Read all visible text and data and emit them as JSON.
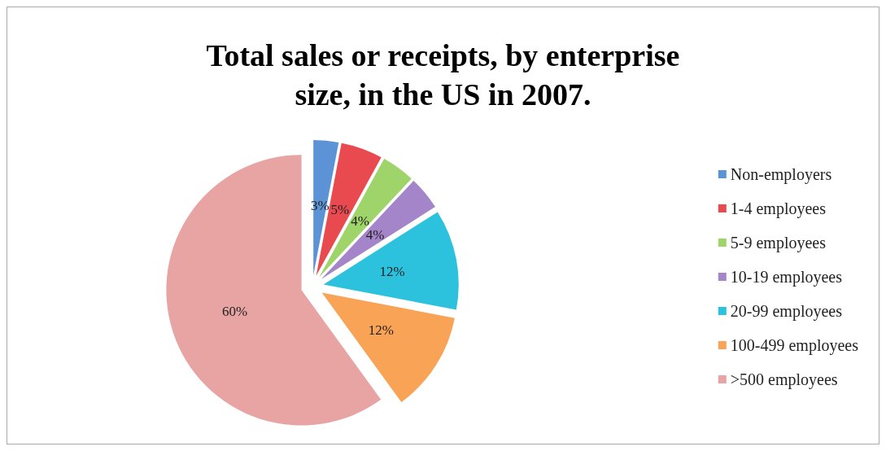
{
  "chart_data": {
    "type": "pie",
    "title": "Total sales or receipts, by enterprise\nsize, in the US in 2007.",
    "categories": [
      "Non-employers",
      "1-4 employees",
      "5-9 employees",
      "10-19 employees",
      "20-99 employees",
      "100-499 employees",
      ">500 employees"
    ],
    "values": [
      3,
      5,
      4,
      4,
      12,
      12,
      60
    ],
    "colors": [
      "#5b93d6",
      "#e84a4f",
      "#9fd46a",
      "#a585c9",
      "#2cc2de",
      "#f9a356",
      "#e8a3a3"
    ],
    "value_labels": [
      "3%",
      "5%",
      "4%",
      "4%",
      "12%",
      "12%",
      "60%"
    ],
    "legend": "right"
  }
}
